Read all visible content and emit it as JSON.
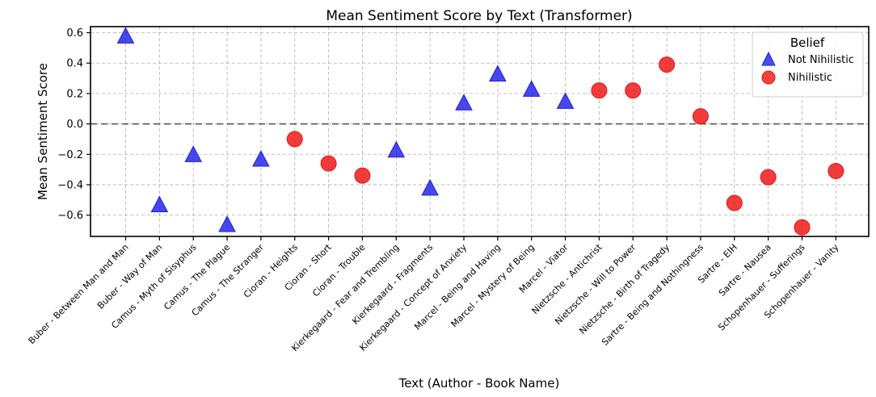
{
  "chart_data": {
    "type": "scatter",
    "title": "Mean Sentiment Score by Text (Transformer)",
    "xlabel": "Text (Author - Book Name)",
    "ylabel": "Mean Sentiment Score",
    "ylim": [
      -0.74,
      0.64
    ],
    "yticks": [
      0.6,
      0.4,
      0.2,
      0.0,
      -0.2,
      -0.4,
      -0.6
    ],
    "ytick_labels": [
      "0.6",
      "0.4",
      "0.2",
      "0.0",
      "−0.2",
      "−0.4",
      "−0.6"
    ],
    "grid": true,
    "reference_line": 0,
    "legend": {
      "title": "Belief",
      "position": "top-right",
      "entries": [
        {
          "label": "Not Nihilistic",
          "marker": "triangle",
          "color": "#1f1fe6"
        },
        {
          "label": "Nihilistic",
          "marker": "circle",
          "color": "#ee1111"
        }
      ]
    },
    "categories": [
      "Buber - Between Man and Man",
      "Buber - Way of Man",
      "Camus - Myth of Sisyphus",
      "Camus - The Plague",
      "Camus - The Stranger",
      "Cioran - Heights",
      "Cioran - Short",
      "Cioran - Trouble",
      "Kierkegaard - Fear and Trembling",
      "Kierkegaard - Fragments",
      "Kierkegaard - Concept of Anxiety",
      "Marcel - Being and Having",
      "Marcel - Mystery of Being",
      "Marcel - Viator",
      "Nietzsche - Antichrist",
      "Nietzsche - Will to Power",
      "Nietzsche - Birth of Tragedy",
      "Sartre - Being and Nothingness",
      "Sartre - EIH",
      "Sartre - Nausea",
      "Schopenhauer - Sufferings",
      "Schopenhauer - Vanity"
    ],
    "values": [
      0.57,
      -0.54,
      -0.21,
      -0.67,
      -0.24,
      -0.1,
      -0.26,
      -0.34,
      -0.18,
      -0.43,
      0.13,
      0.32,
      0.22,
      0.14,
      0.22,
      0.22,
      0.39,
      0.05,
      -0.52,
      -0.35,
      -0.68,
      -0.31
    ],
    "belief": [
      "Not Nihilistic",
      "Not Nihilistic",
      "Not Nihilistic",
      "Not Nihilistic",
      "Not Nihilistic",
      "Nihilistic",
      "Nihilistic",
      "Nihilistic",
      "Not Nihilistic",
      "Not Nihilistic",
      "Not Nihilistic",
      "Not Nihilistic",
      "Not Nihilistic",
      "Not Nihilistic",
      "Nihilistic",
      "Nihilistic",
      "Nihilistic",
      "Nihilistic",
      "Nihilistic",
      "Nihilistic",
      "Nihilistic",
      "Nihilistic"
    ]
  }
}
